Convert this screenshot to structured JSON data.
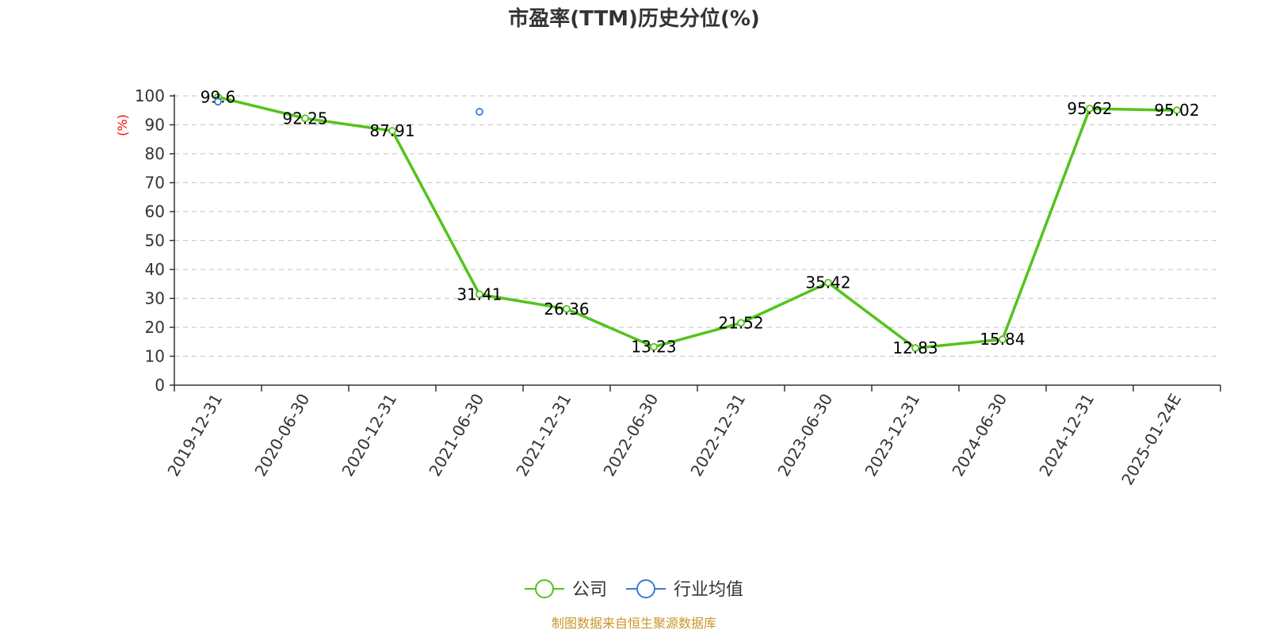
{
  "chart_data": {
    "type": "line",
    "title": "市盈率(TTM)历史分位(%)",
    "ylabel": "(%)",
    "xlabel": "",
    "ylim": [
      0,
      100
    ],
    "yticks": [
      0,
      10,
      20,
      30,
      40,
      50,
      60,
      70,
      80,
      90,
      100
    ],
    "categories": [
      "2019-12-31",
      "2020-06-30",
      "2020-12-31",
      "2021-06-30",
      "2021-12-31",
      "2022-06-30",
      "2022-12-31",
      "2023-06-30",
      "2023-12-31",
      "2024-06-30",
      "2024-12-31",
      "2025-01-24E"
    ],
    "series": [
      {
        "name": "公司",
        "color": "#52c41a",
        "values": [
          99.6,
          92.25,
          87.91,
          31.41,
          26.36,
          13.23,
          21.52,
          35.42,
          12.83,
          15.84,
          95.62,
          95.02
        ],
        "labels": [
          "99.6",
          "92.25",
          "87.91",
          "31.41",
          "26.36",
          "13.23",
          "21.52",
          "35.42",
          "12.83",
          "15.84",
          "95.62",
          "95.02"
        ]
      },
      {
        "name": "行业均值",
        "color": "#3a7bd5",
        "values": [
          98,
          null,
          null,
          94.5,
          null,
          null,
          null,
          null,
          null,
          null,
          null,
          null
        ]
      }
    ],
    "grid": true,
    "legend_position": "bottom-center",
    "source": "制图数据来自恒生聚源数据库"
  }
}
